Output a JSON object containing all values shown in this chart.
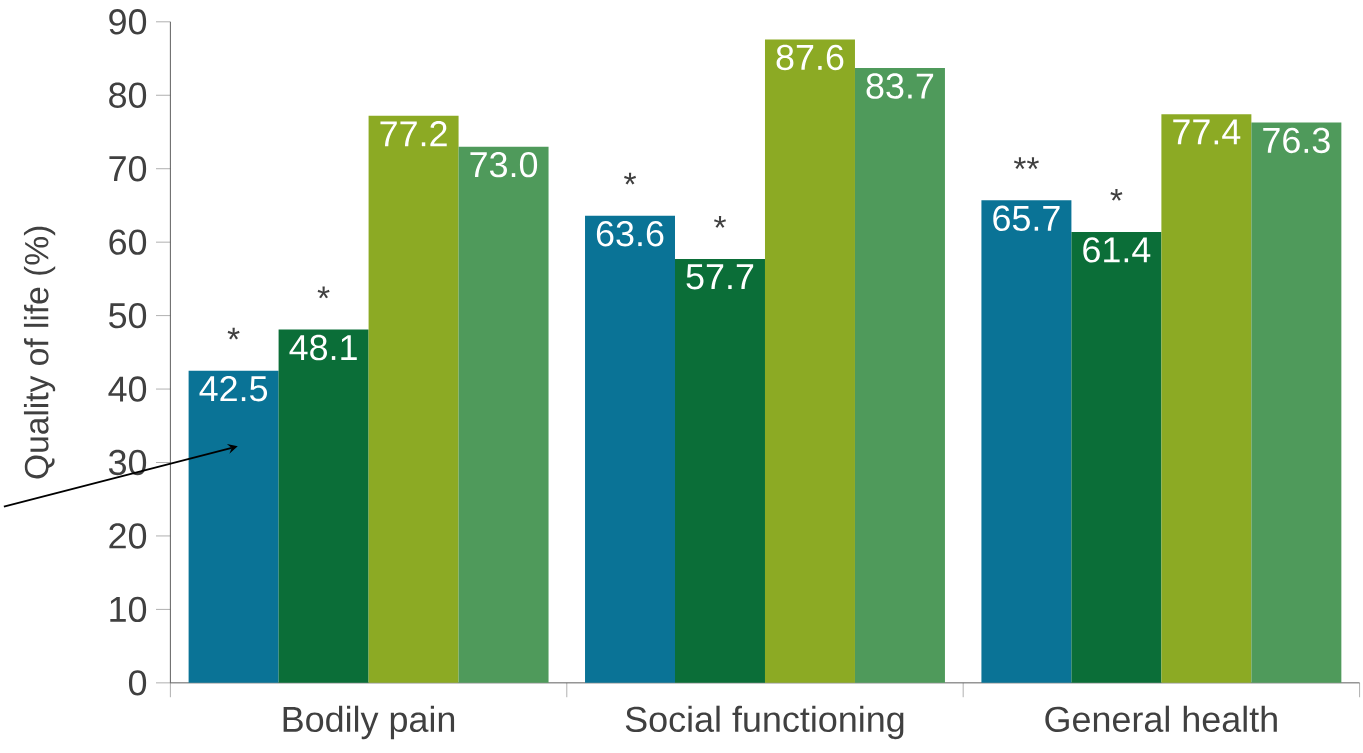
{
  "chart_data": {
    "type": "bar",
    "ylabel": "Quality of life (%)",
    "categories": [
      "Bodily pain",
      "Social functioning",
      "General health"
    ],
    "series": [
      {
        "color": "#0a7396",
        "values": [
          42.5,
          63.6,
          65.7
        ],
        "value_labels": [
          "42.5",
          "63.6",
          "65.7"
        ]
      },
      {
        "color": "#0b6e38",
        "values": [
          48.1,
          57.7,
          61.4
        ],
        "value_labels": [
          "48.1",
          "57.7",
          "61.4"
        ]
      },
      {
        "color": "#8caa24",
        "values": [
          77.2,
          87.6,
          77.4
        ],
        "value_labels": [
          "77.2",
          "87.6",
          "77.4"
        ]
      },
      {
        "color": "#4f9a5b",
        "values": [
          73.0,
          83.7,
          76.3
        ],
        "value_labels": [
          "73.0",
          "83.7",
          "76.3"
        ]
      }
    ],
    "ylim": [
      0,
      90
    ],
    "yticks": [
      0,
      10,
      20,
      30,
      40,
      50,
      60,
      70,
      80,
      90
    ],
    "grid": false,
    "annotations": [
      "*",
      "*",
      "*",
      "*",
      "**",
      "*"
    ]
  }
}
